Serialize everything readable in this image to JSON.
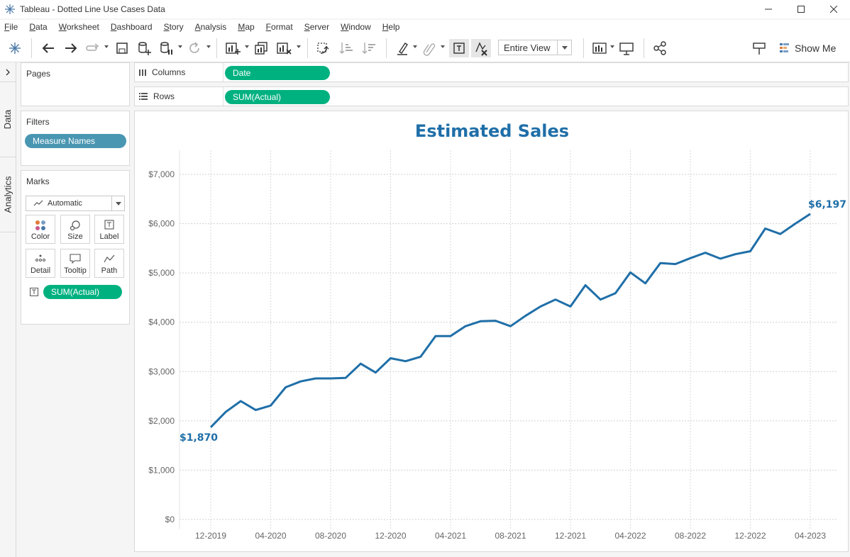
{
  "window": {
    "title": "Tableau - Dotted Line Use Cases Data"
  },
  "menu": {
    "items": [
      "File",
      "Data",
      "Worksheet",
      "Dashboard",
      "Story",
      "Analysis",
      "Map",
      "Format",
      "Server",
      "Window",
      "Help"
    ]
  },
  "toolbar": {
    "fit_value": "Entire View",
    "show_me_label": "Show Me",
    "icons": [
      "tableau-logo-icon",
      "undo-icon",
      "redo-icon",
      "replay-icon",
      "save-icon",
      "new-datasource-icon",
      "pause-icon",
      "refresh-icon",
      "new-worksheet-icon",
      "duplicate-icon",
      "clear-sheet-icon",
      "swap-icon",
      "sort-asc-icon",
      "sort-desc-icon",
      "highlight-icon",
      "group-icon",
      "show-labels-icon",
      "fix-axes-icon",
      "bar-chart-icon",
      "presentation-icon",
      "share-icon",
      "caption-icon"
    ]
  },
  "side_tabs": {
    "data": "Data",
    "analytics": "Analytics"
  },
  "pages_card": {
    "title": "Pages"
  },
  "filters_card": {
    "title": "Filters",
    "pills": [
      "Measure Names"
    ]
  },
  "marks_card": {
    "title": "Marks",
    "mark_type": "Automatic",
    "buttons": [
      "Color",
      "Size",
      "Label",
      "Detail",
      "Tooltip",
      "Path"
    ],
    "pills": [
      "SUM(Actual)"
    ]
  },
  "shelves": {
    "columns": {
      "label": "Columns",
      "pill": "Date"
    },
    "rows": {
      "label": "Rows",
      "pill": "SUM(Actual)"
    }
  },
  "colors": {
    "accent_green": "#00b180",
    "filter_blue": "#4996b2",
    "line": "#1f6fa8"
  },
  "chart_data": {
    "type": "line",
    "title": "Estimated Sales",
    "xlabel": "",
    "ylabel": "",
    "x_tick_labels": [
      "12-2019",
      "04-2020",
      "08-2020",
      "12-2020",
      "04-2021",
      "08-2021",
      "12-2021",
      "04-2022",
      "08-2022",
      "12-2022",
      "04-2023"
    ],
    "y_tick_labels": [
      "$0",
      "$1,000",
      "$2,000",
      "$3,000",
      "$4,000",
      "$5,000",
      "$6,000",
      "$7,000"
    ],
    "ylim": [
      0,
      7000
    ],
    "grid": true,
    "series": [
      {
        "values": [
          1870,
          2180,
          2400,
          2220,
          2310,
          2680,
          2800,
          2860,
          2860,
          2870,
          3160,
          2980,
          3270,
          3210,
          3300,
          3720,
          3720,
          3920,
          4020,
          4030,
          3920,
          4130,
          4320,
          4460,
          4320,
          4750,
          4460,
          4590,
          5010,
          4790,
          5200,
          5180,
          5300,
          5410,
          5290,
          5380,
          5440,
          5900,
          5790,
          6000,
          6197
        ]
      }
    ],
    "end_labels": {
      "start": "$1,870",
      "end": "$6,197"
    }
  }
}
